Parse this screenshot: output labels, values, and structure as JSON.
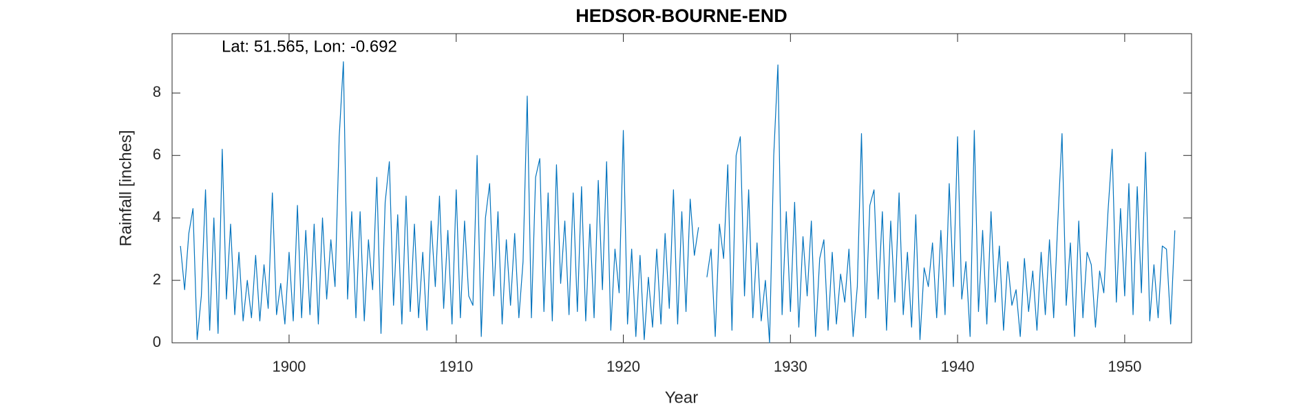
{
  "chart_data": {
    "type": "line",
    "title": "HEDSOR-BOURNE-END",
    "x_label": "Year",
    "y_label": "Rainfall [inches]",
    "annotation": "Lat: 51.565, Lon: -0.692",
    "color": "#0072bd",
    "grid": false,
    "xlim": [
      1893,
      1954
    ],
    "xticks": [
      1900,
      1910,
      1920,
      1930,
      1940,
      1950
    ],
    "ylim": [
      0,
      9.9
    ],
    "yticks": [
      0,
      2,
      4,
      6,
      8
    ],
    "x": [
      1893.5,
      1893.75,
      1894,
      1894.25,
      1894.5,
      1894.75,
      1895,
      1895.25,
      1895.5,
      1895.75,
      1896,
      1896.25,
      1896.5,
      1896.75,
      1897,
      1897.25,
      1897.5,
      1897.75,
      1898,
      1898.25,
      1898.5,
      1898.75,
      1899,
      1899.25,
      1899.5,
      1899.75,
      1900,
      1900.25,
      1900.5,
      1900.75,
      1901,
      1901.25,
      1901.5,
      1901.75,
      1902,
      1902.25,
      1902.5,
      1902.75,
      1903,
      1903.25,
      1903.5,
      1903.75,
      1904,
      1904.25,
      1904.5,
      1904.75,
      1905,
      1905.25,
      1905.5,
      1905.75,
      1906,
      1906.25,
      1906.5,
      1906.75,
      1907,
      1907.25,
      1907.5,
      1907.75,
      1908,
      1908.25,
      1908.5,
      1908.75,
      1909,
      1909.25,
      1909.5,
      1909.75,
      1910,
      1910.25,
      1910.5,
      1910.75,
      1911,
      1911.25,
      1911.5,
      1911.75,
      1912,
      1912.25,
      1912.5,
      1912.75,
      1913,
      1913.25,
      1913.5,
      1913.75,
      1914,
      1914.25,
      1914.5,
      1914.75,
      1915,
      1915.25,
      1915.5,
      1915.75,
      1916,
      1916.25,
      1916.5,
      1916.75,
      1917,
      1917.25,
      1917.5,
      1917.75,
      1918,
      1918.25,
      1918.5,
      1918.75,
      1919,
      1919.25,
      1919.5,
      1919.75,
      1920,
      1920.25,
      1920.5,
      1920.75,
      1921,
      1921.25,
      1921.5,
      1921.75,
      1922,
      1922.25,
      1922.5,
      1922.75,
      1923,
      1923.25,
      1923.5,
      1923.75,
      1924,
      1924.25,
      1924.5,
      1924.75,
      1925,
      1925.25,
      1925.5,
      1925.75,
      1926,
      1926.25,
      1926.5,
      1926.75,
      1927,
      1927.25,
      1927.5,
      1927.75,
      1928,
      1928.25,
      1928.5,
      1928.75,
      1929,
      1929.25,
      1929.5,
      1929.75,
      1930,
      1930.25,
      1930.5,
      1930.75,
      1931,
      1931.25,
      1931.5,
      1931.75,
      1932,
      1932.25,
      1932.5,
      1932.75,
      1933,
      1933.25,
      1933.5,
      1933.75,
      1934,
      1934.25,
      1934.5,
      1934.75,
      1935,
      1935.25,
      1935.5,
      1935.75,
      1936,
      1936.25,
      1936.5,
      1936.75,
      1937,
      1937.25,
      1937.5,
      1937.75,
      1938,
      1938.25,
      1938.5,
      1938.75,
      1939,
      1939.25,
      1939.5,
      1939.75,
      1940,
      1940.25,
      1940.5,
      1940.75,
      1941,
      1941.25,
      1941.5,
      1941.75,
      1942,
      1942.25,
      1942.5,
      1942.75,
      1943,
      1943.25,
      1943.5,
      1943.75,
      1944,
      1944.25,
      1944.5,
      1944.75,
      1945,
      1945.25,
      1945.5,
      1945.75,
      1946,
      1946.25,
      1946.5,
      1946.75,
      1947,
      1947.25,
      1947.5,
      1947.75,
      1948,
      1948.25,
      1948.5,
      1948.75,
      1949,
      1949.25,
      1949.5,
      1949.75,
      1950,
      1950.25,
      1950.5,
      1950.75,
      1951,
      1951.25,
      1951.5,
      1951.75,
      1952,
      1952.25,
      1952.5,
      1952.75,
      1953
    ],
    "values": [
      3.1,
      1.7,
      3.5,
      4.3,
      0.1,
      1.5,
      4.9,
      0.4,
      4.0,
      0.3,
      6.2,
      1.4,
      3.8,
      0.9,
      2.9,
      0.7,
      2.0,
      0.8,
      2.8,
      0.7,
      2.5,
      1.1,
      4.8,
      0.9,
      1.9,
      0.6,
      2.9,
      0.7,
      4.4,
      0.8,
      3.6,
      0.9,
      3.8,
      0.6,
      4.0,
      1.4,
      3.3,
      1.8,
      6.6,
      9.0,
      1.4,
      4.2,
      0.8,
      4.2,
      0.7,
      3.3,
      1.7,
      5.3,
      0.3,
      4.5,
      5.8,
      1.2,
      4.1,
      0.6,
      4.7,
      1.0,
      3.8,
      0.8,
      2.9,
      0.4,
      3.9,
      1.8,
      4.7,
      1.1,
      3.6,
      0.6,
      4.9,
      0.8,
      3.9,
      1.5,
      1.2,
      6.0,
      0.2,
      4.0,
      5.1,
      1.5,
      4.2,
      0.6,
      3.3,
      1.2,
      3.5,
      0.8,
      2.6,
      7.9,
      0.8,
      5.3,
      5.9,
      1.0,
      4.8,
      0.7,
      5.7,
      1.9,
      3.9,
      0.9,
      4.8,
      1.0,
      5.0,
      0.7,
      3.8,
      0.8,
      5.2,
      1.7,
      5.8,
      0.4,
      3.0,
      1.6,
      6.8,
      0.6,
      3.0,
      0.2,
      2.8,
      0.1,
      2.1,
      0.5,
      3.0,
      0.6,
      3.5,
      1.1,
      4.9,
      0.6,
      4.2,
      1.0,
      4.6,
      2.8,
      3.7,
      null,
      2.1,
      3.0,
      0.2,
      3.8,
      2.7,
      5.7,
      0.4,
      6.0,
      6.6,
      1.5,
      4.9,
      0.8,
      3.2,
      0.7,
      2.0,
      0.0,
      6.0,
      8.9,
      0.9,
      4.2,
      1.0,
      4.5,
      0.5,
      3.4,
      1.5,
      3.9,
      0.2,
      2.7,
      3.3,
      0.4,
      2.9,
      0.6,
      2.2,
      1.3,
      3.0,
      0.2,
      1.8,
      6.7,
      0.8,
      4.4,
      4.9,
      1.4,
      4.2,
      0.4,
      3.9,
      1.3,
      4.8,
      0.9,
      2.9,
      0.5,
      4.1,
      0.1,
      2.4,
      1.8,
      3.2,
      0.8,
      3.6,
      0.9,
      5.1,
      1.8,
      6.6,
      1.4,
      2.6,
      0.2,
      6.8,
      1.0,
      3.6,
      0.6,
      4.2,
      1.3,
      3.1,
      0.4,
      2.6,
      1.2,
      1.7,
      0.2,
      2.7,
      1.0,
      2.3,
      0.4,
      2.9,
      0.9,
      3.3,
      0.8,
      3.9,
      6.7,
      1.2,
      3.2,
      0.2,
      3.9,
      0.8,
      2.9,
      2.5,
      0.5,
      2.3,
      1.6,
      4.2,
      6.2,
      1.3,
      4.3,
      1.5,
      5.1,
      0.9,
      5.0,
      1.6,
      6.1,
      0.7,
      2.5,
      0.8,
      3.1,
      3.0,
      0.6,
      3.6
    ]
  }
}
